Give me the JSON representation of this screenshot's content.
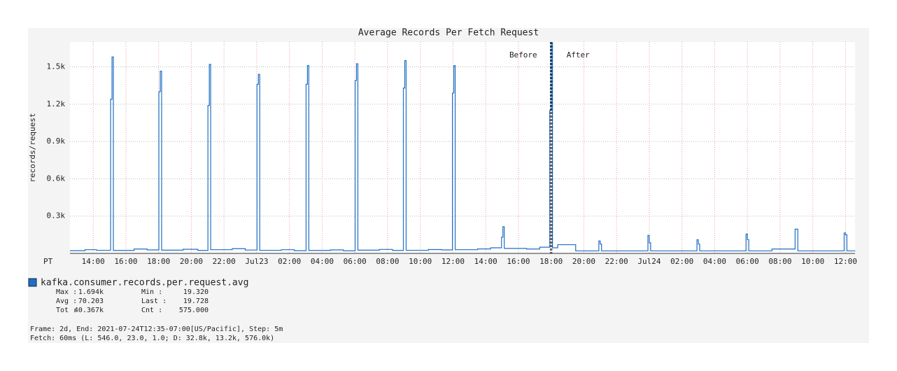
{
  "chart_data": {
    "type": "step-line",
    "title": "Average Records Per Fetch Request",
    "y_label": "records/request",
    "timezone": "PT",
    "x": [
      12.58,
      13.5,
      14.2,
      15.066,
      15.15,
      15.233,
      16.5,
      17.3,
      18.016,
      18.1,
      18.183,
      19.5,
      20.4,
      21.016,
      21.1,
      21.183,
      22.5,
      23.3,
      24.016,
      24.1,
      24.183,
      25.5,
      26.3,
      27.016,
      27.1,
      27.183,
      28.5,
      29.3,
      30.016,
      30.1,
      30.183,
      31.5,
      32.3,
      32.966,
      33.05,
      33.133,
      34.5,
      35.3,
      35.966,
      36.05,
      36.133,
      37.5,
      38.3,
      38.966,
      39.05,
      39.133,
      40.5,
      41.3,
      41.916,
      42.0,
      42.083,
      42.4,
      43.5,
      44.916,
      45.0,
      45.083,
      46.5,
      47.916,
      48.0,
      48.083,
      49.5,
      50.916,
      51.0,
      51.083,
      52.5,
      53.916,
      54.0,
      54.083,
      55.5,
      56.916,
      57.0,
      57.083,
      58.5,
      59.916,
      60.0,
      60.083,
      60.58
    ],
    "series": [
      {
        "name": "kafka.consumer.records.per.request.avg",
        "color": "#1f6fc5",
        "values": [
          22,
          30,
          25,
          1240,
          1580,
          24,
          35,
          28,
          1300,
          1465,
          26,
          33,
          24,
          1190,
          1520,
          30,
          38,
          27,
          1360,
          1440,
          25,
          30,
          22,
          1360,
          1510,
          24,
          28,
          21,
          1390,
          1525,
          26,
          32,
          24,
          1330,
          1550,
          25,
          31,
          28,
          1290,
          1510,
          30,
          36,
          45,
          130,
          215,
          40,
          35,
          50,
          1150,
          1694,
          45,
          70,
          20,
          100,
          75,
          20,
          20,
          145,
          85,
          20,
          20,
          110,
          75,
          20,
          20,
          155,
          110,
          20,
          35,
          195,
          195,
          20,
          20,
          165,
          150,
          20,
          19.728
        ]
      }
    ],
    "xlim": [
      12.58,
      60.58
    ],
    "ylim": [
      0,
      1700
    ],
    "xticks": [
      {
        "value": 14,
        "label": "14:00"
      },
      {
        "value": 16,
        "label": "16:00"
      },
      {
        "value": 18,
        "label": "18:00"
      },
      {
        "value": 20,
        "label": "20:00"
      },
      {
        "value": 22,
        "label": "22:00"
      },
      {
        "value": 24,
        "label": "Jul23"
      },
      {
        "value": 26,
        "label": "02:00"
      },
      {
        "value": 28,
        "label": "04:00"
      },
      {
        "value": 30,
        "label": "06:00"
      },
      {
        "value": 32,
        "label": "08:00"
      },
      {
        "value": 34,
        "label": "10:00"
      },
      {
        "value": 36,
        "label": "12:00"
      },
      {
        "value": 38,
        "label": "14:00"
      },
      {
        "value": 40,
        "label": "16:00"
      },
      {
        "value": 42,
        "label": "18:00"
      },
      {
        "value": 44,
        "label": "20:00"
      },
      {
        "value": 46,
        "label": "22:00"
      },
      {
        "value": 48,
        "label": "Jul24"
      },
      {
        "value": 50,
        "label": "02:00"
      },
      {
        "value": 52,
        "label": "04:00"
      },
      {
        "value": 54,
        "label": "06:00"
      },
      {
        "value": 56,
        "label": "08:00"
      },
      {
        "value": 58,
        "label": "10:00"
      },
      {
        "value": 60,
        "label": "12:00"
      }
    ],
    "yticks": [
      {
        "value": 300,
        "label": "0.3k"
      },
      {
        "value": 600,
        "label": "0.6k"
      },
      {
        "value": 900,
        "label": "0.9k"
      },
      {
        "value": 1200,
        "label": "1.2k"
      },
      {
        "value": 1500,
        "label": "1.5k"
      }
    ],
    "grid": true,
    "marker": {
      "x": 42,
      "before": "Before",
      "after": "After"
    },
    "stats": [
      [
        "Max :",
        "1.694k",
        "Min :",
        "19.320"
      ],
      [
        "Avg :",
        "70.203",
        "Last :",
        "19.728"
      ],
      [
        "Tot :",
        "40.367k",
        "Cnt :",
        "575.000"
      ]
    ],
    "footer": [
      "Frame: 2d, End: 2021-07-24T12:35-07:00[US/Pacific], Step: 5m",
      "Fetch: 60ms (L: 546.0, 23.0, 1.0; D: 32.8k, 13.2k, 576.0k)"
    ]
  }
}
